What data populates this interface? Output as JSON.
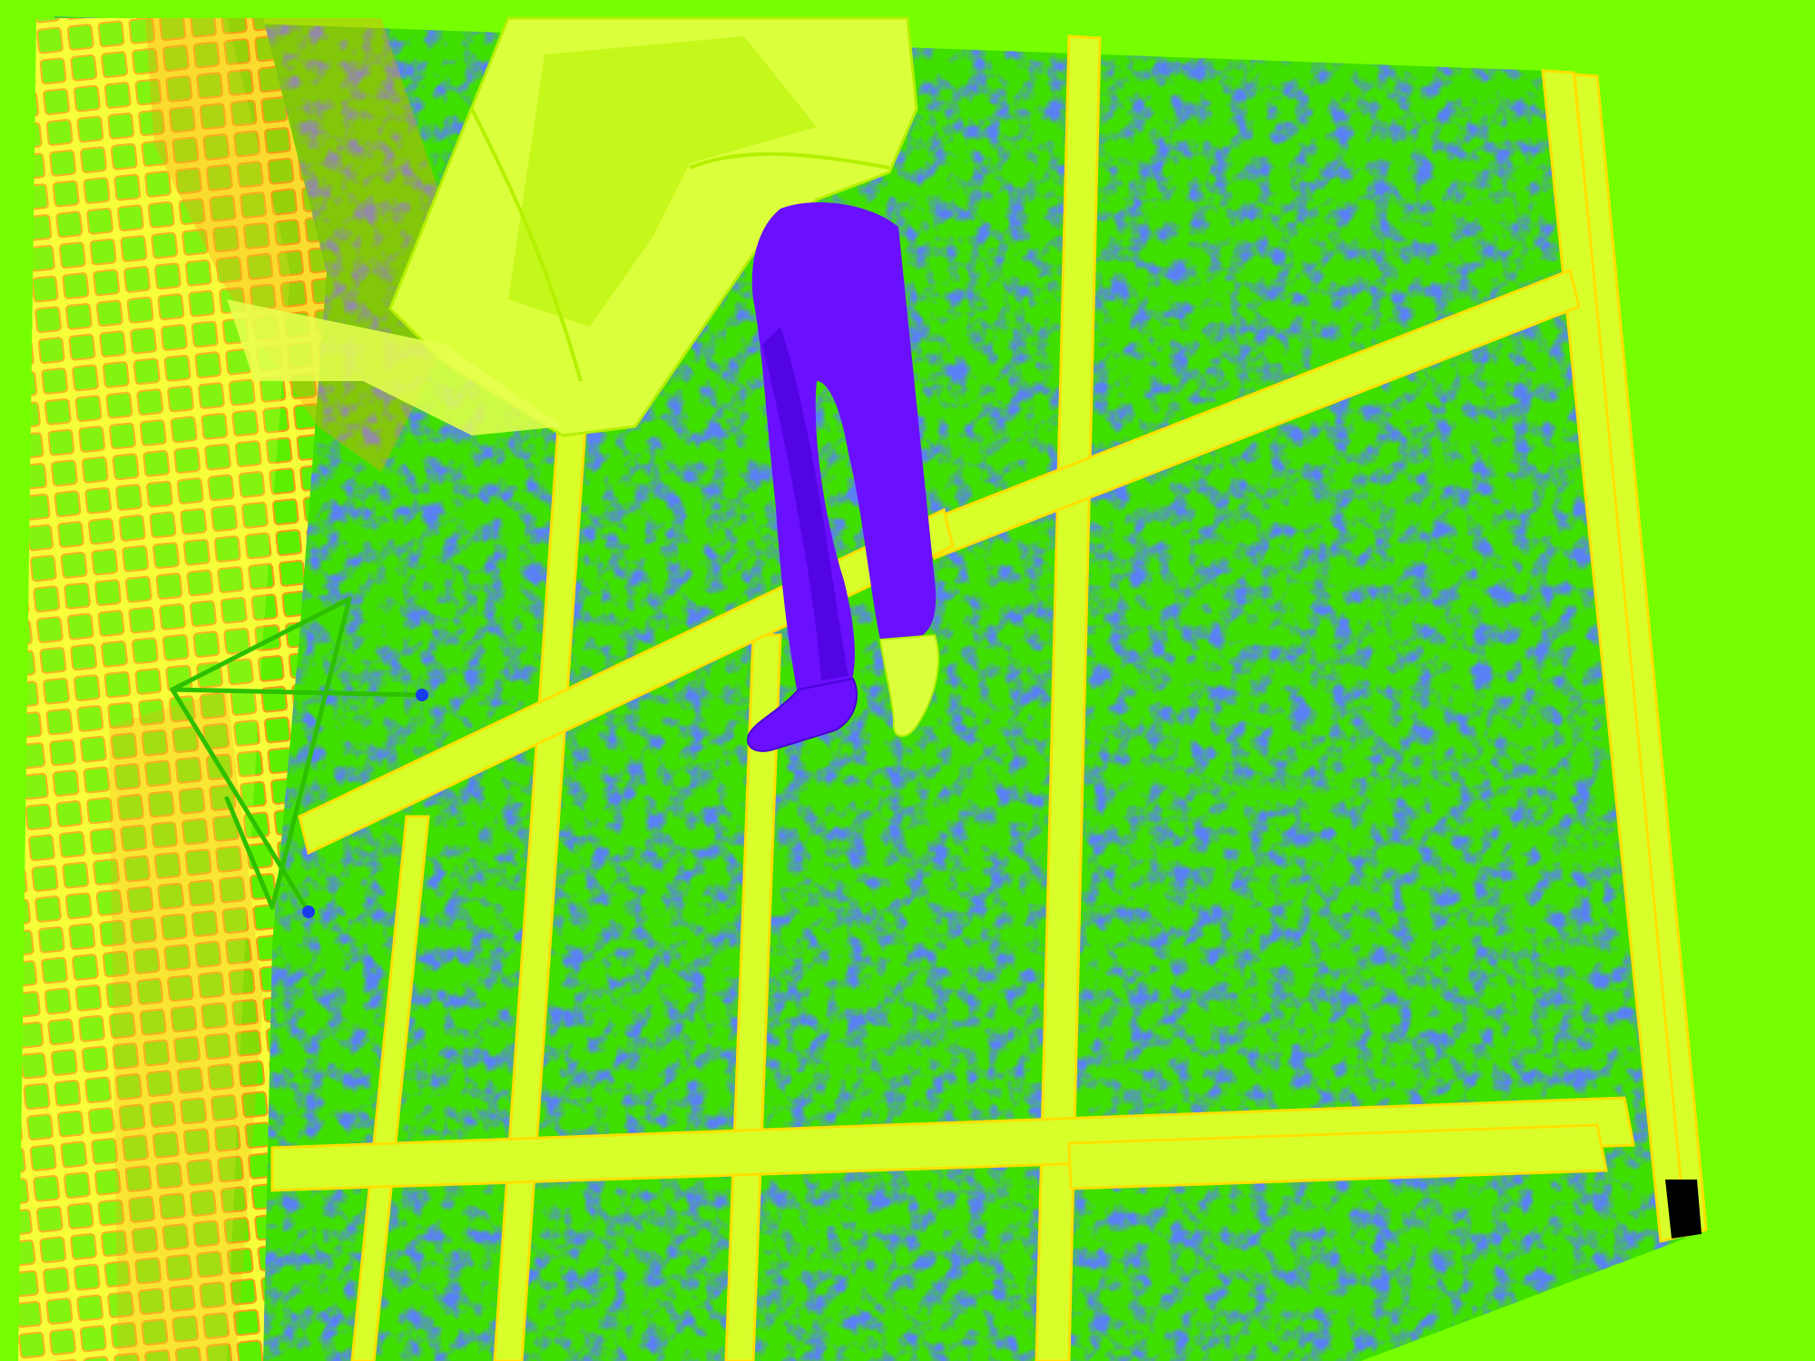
{
  "colors": {
    "background": "#76ff00",
    "floor_green": "#3fe000",
    "floor_blue": "#1b3fe0",
    "grid_line": "#d8ff2a",
    "grid_line_edge": "#ffe000",
    "net_orange": "#ff9a1a",
    "net_green": "#5cf000",
    "net_yellow": "#f6ff3a",
    "coat": "#dcff3c",
    "coat_shadow": "#b4f000",
    "pants": "#6a10ff",
    "pants_dark": "#4a00d8",
    "stand_blue": "#1a3cf0"
  },
  "scene": {
    "subject": "person-legs",
    "objects": [
      "checkered-floor",
      "net-wall",
      "music-stand",
      "coat",
      "pants",
      "shoes"
    ]
  }
}
